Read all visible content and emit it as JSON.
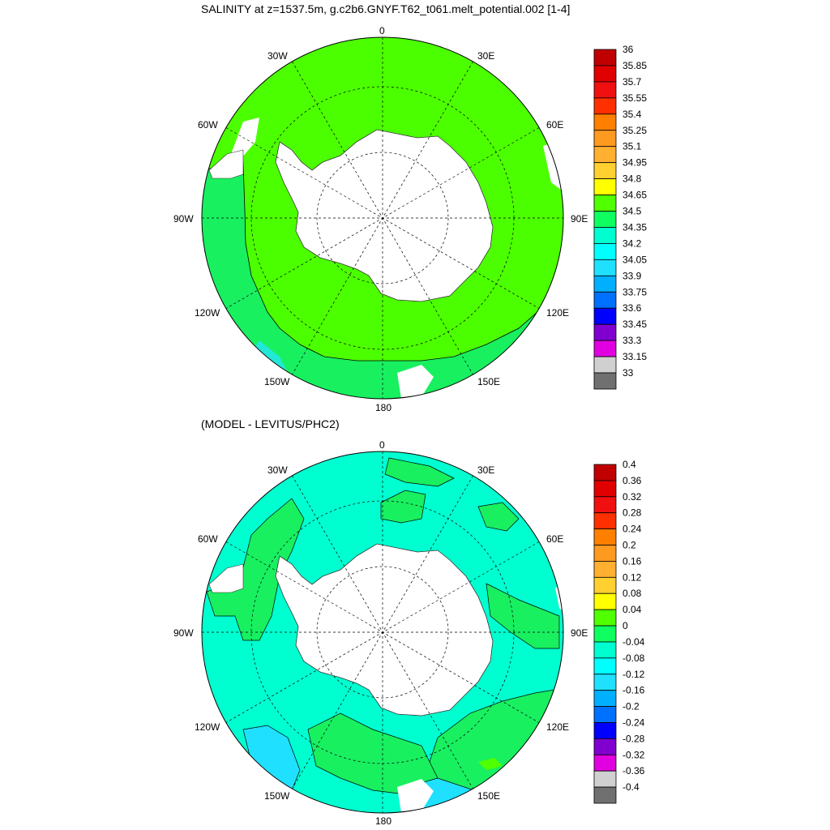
{
  "top_title": "SALINITY at z=1537.5m, g.c2b6.GNYF.T62_t061.melt_potential.002 [1-4]",
  "bottom_title": "(MODEL - LEVITUS/PHC2)",
  "map_labels": {
    "n0": "0",
    "n30e": "30E",
    "n60e": "60E",
    "n90e": "90E",
    "n120e": "120E",
    "n150e": "150E",
    "n180": "180",
    "n150w": "150W",
    "n120w": "120W",
    "n90w": "90W",
    "n60w": "60W",
    "n30w": "30W"
  },
  "top_colorbar": {
    "labels": [
      "36",
      "35.85",
      "35.7",
      "35.55",
      "35.4",
      "35.25",
      "35.1",
      "34.95",
      "34.8",
      "34.65",
      "34.5",
      "34.35",
      "34.2",
      "34.05",
      "33.9",
      "33.75",
      "33.6",
      "33.45",
      "33.3",
      "33.15",
      "33"
    ],
    "colors": [
      "#c00000",
      "#e00000",
      "#f01010",
      "#ff3000",
      "#ff8000",
      "#ff9a20",
      "#ffb030",
      "#ffd030",
      "#ffff00",
      "#50ff00",
      "#10ff60",
      "#00ffd0",
      "#00ffff",
      "#20e0ff",
      "#00b0ff",
      "#0070ff",
      "#0000ff",
      "#8000d0",
      "#e000e0",
      "#d0d0d0",
      "#707070"
    ]
  },
  "bottom_colorbar": {
    "labels": [
      "0.4",
      "0.36",
      "0.32",
      "0.28",
      "0.24",
      "0.2",
      "0.16",
      "0.12",
      "0.08",
      "0.04",
      "0",
      "-0.04",
      "-0.08",
      "-0.12",
      "-0.16",
      "-0.2",
      "-0.24",
      "-0.28",
      "-0.32",
      "-0.36",
      "-0.4"
    ],
    "colors": [
      "#c00000",
      "#e00000",
      "#f01010",
      "#ff3000",
      "#ff8000",
      "#ff9a20",
      "#ffb030",
      "#ffd030",
      "#ffff00",
      "#50ff00",
      "#10ff60",
      "#00ffd0",
      "#00ffff",
      "#20e0ff",
      "#00b0ff",
      "#0070ff",
      "#0000ff",
      "#8000d0",
      "#e000e0",
      "#d0d0d0",
      "#707070"
    ]
  },
  "field_colors": {
    "top_ocean": "#4cff00",
    "top_secondary": "#18f060",
    "top_tertiary": "#22e8d8",
    "bottom_ocean": "#00ffd0",
    "bottom_positive": "#18f060",
    "bottom_positive2": "#50ff00",
    "bottom_negative": "#20e0ff",
    "land": "#ffffff"
  }
}
